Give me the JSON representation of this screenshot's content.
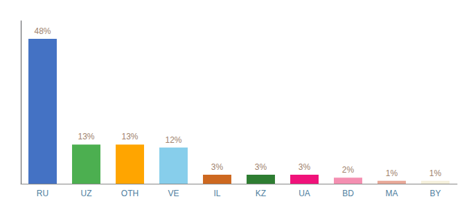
{
  "chart_data": {
    "type": "bar",
    "categories": [
      "RU",
      "UZ",
      "OTH",
      "VE",
      "IL",
      "KZ",
      "UA",
      "BD",
      "MA",
      "BY"
    ],
    "values": [
      48,
      13,
      13,
      12,
      3,
      3,
      3,
      2,
      1,
      1
    ],
    "value_labels": [
      "48%",
      "13%",
      "13%",
      "12%",
      "3%",
      "3%",
      "3%",
      "2%",
      "1%",
      "1%"
    ],
    "colors": [
      "#4472C4",
      "#4CAF50",
      "#FFA500",
      "#87CEEB",
      "#CD6820",
      "#2E7D32",
      "#F0127A",
      "#F48FB1",
      "#E8A898",
      "#F5F0DC"
    ],
    "ylim": [
      0,
      54
    ],
    "yticks": [],
    "grid": false,
    "data_labels": true,
    "tick_labels": "x"
  }
}
